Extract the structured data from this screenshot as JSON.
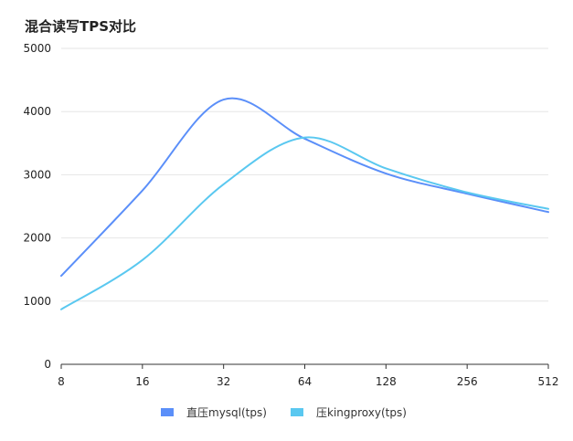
{
  "chart_data": {
    "type": "line",
    "title": "混合读写TPS对比",
    "xlabel": "",
    "ylabel": "",
    "x_scale": "log2",
    "categories": [
      "8",
      "16",
      "32",
      "64",
      "128",
      "256",
      "512"
    ],
    "x": [
      8,
      16,
      32,
      64,
      128,
      256,
      512
    ],
    "ylim": [
      0,
      5000
    ],
    "yticks": [
      "0",
      "1000",
      "2000",
      "3000",
      "4000",
      "5000"
    ],
    "ytick_values": [
      0,
      1000,
      2000,
      3000,
      4000,
      5000
    ],
    "grid": true,
    "legend_position": "bottom-center",
    "series": [
      {
        "name": "直压mysql(tps)",
        "color": "#5b8ff9",
        "values": [
          1400,
          2750,
          4190,
          3570,
          3020,
          2700,
          2410
        ]
      },
      {
        "name": "压kingproxy(tps)",
        "color": "#5ac8f0",
        "values": [
          870,
          1650,
          2850,
          3590,
          3100,
          2720,
          2460
        ]
      }
    ]
  }
}
